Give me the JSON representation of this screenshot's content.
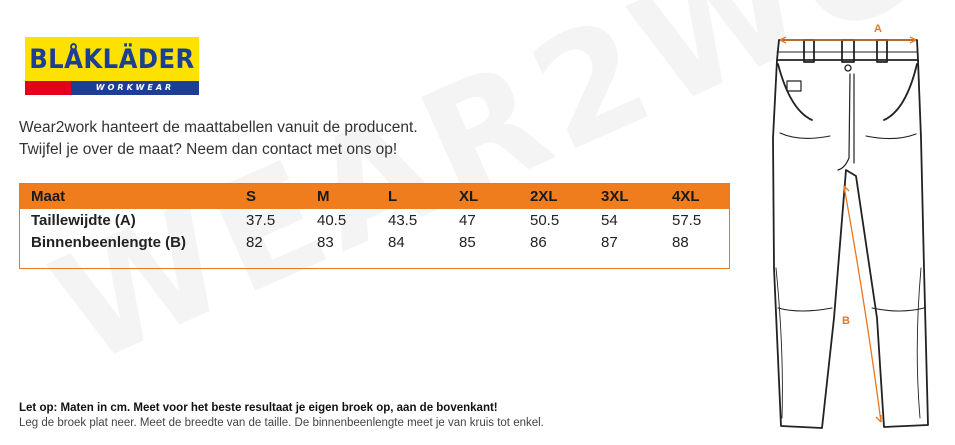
{
  "brand": {
    "name": "BLÅKLÄDER",
    "tagline": "WORKWEAR",
    "colors": {
      "yellow": "#fde100",
      "blue": "#1c3f95",
      "red": "#e2001a"
    }
  },
  "watermark": "WEAR2WORK",
  "intro": {
    "line1": "Wear2work hanteert de maattabellen vanuit de producent.",
    "line2": "Twijfel je over de maat? Neem dan contact met ons op!"
  },
  "size_table": {
    "accent": "#f07d1d",
    "headers": [
      "Maat",
      "S",
      "M",
      "L",
      "XL",
      "2XL",
      "3XL",
      "4XL"
    ],
    "rows": [
      {
        "label": "Taillewijdte (A)",
        "values": [
          "37.5",
          "40.5",
          "43.5",
          "47",
          "50.5",
          "54",
          "57.5"
        ]
      },
      {
        "label": "Binnenbeenlengte (B)",
        "values": [
          "82",
          "83",
          "84",
          "85",
          "86",
          "87",
          "88"
        ]
      }
    ]
  },
  "diagram": {
    "label_a": "A",
    "label_b": "B",
    "icon": "trousers-measurement-icon"
  },
  "note": {
    "bold": "Let op: Maten in cm. Meet voor het beste resultaat je eigen broek op, aan de bovenkant!",
    "text": "Leg de broek plat neer. Meet de breedte van de taille. De binnenbeenlengte meet je van kruis tot enkel."
  }
}
